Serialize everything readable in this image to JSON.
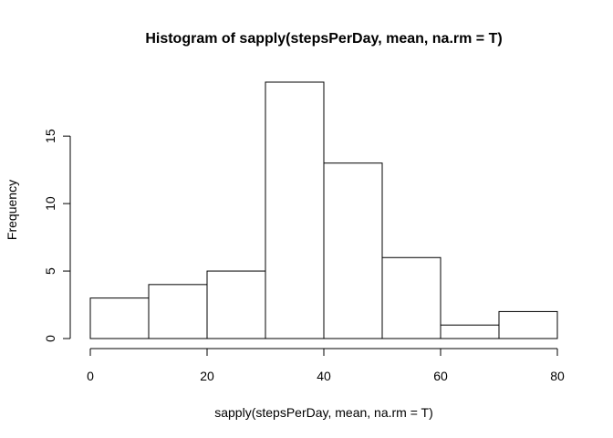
{
  "chart_data": {
    "type": "bar",
    "subtype": "histogram",
    "title": "Histogram of sapply(stepsPerDay, mean, na.rm = T)",
    "xlabel": "sapply(stepsPerDay, mean, na.rm = T)",
    "ylabel": "Frequency",
    "bins": [
      {
        "start": 0,
        "end": 10,
        "count": 3
      },
      {
        "start": 10,
        "end": 20,
        "count": 4
      },
      {
        "start": 20,
        "end": 30,
        "count": 5
      },
      {
        "start": 30,
        "end": 40,
        "count": 19
      },
      {
        "start": 40,
        "end": 50,
        "count": 13
      },
      {
        "start": 50,
        "end": 60,
        "count": 6
      },
      {
        "start": 60,
        "end": 70,
        "count": 1
      },
      {
        "start": 70,
        "end": 80,
        "count": 2
      }
    ],
    "xticks": [
      0,
      20,
      40,
      60,
      80
    ],
    "yticks": [
      0,
      5,
      10,
      15
    ],
    "xlim": [
      0,
      80
    ],
    "ylim": [
      0,
      19
    ],
    "grid": false,
    "legend": "none",
    "bar_fill": "#ffffff",
    "bar_stroke": "#000000"
  }
}
